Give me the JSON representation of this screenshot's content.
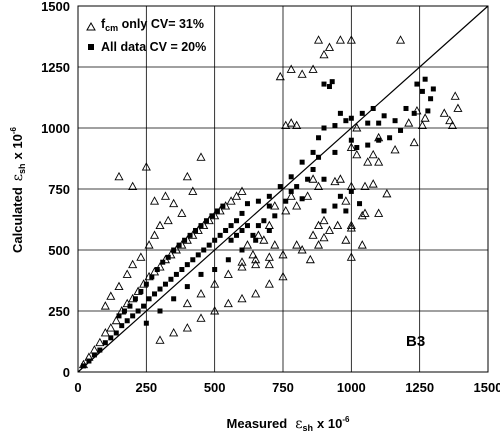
{
  "chart_data": {
    "type": "scatter",
    "title": "",
    "xlabel_prefix": "Measured",
    "ylabel_prefix": "Calculated",
    "axis_symbol": "ε",
    "axis_subscript": "sh",
    "axis_multiplier": "x 10",
    "axis_exponent": "-6",
    "xlim": [
      0,
      1500
    ],
    "ylim": [
      0,
      1500
    ],
    "x_ticks": [
      "0",
      "250",
      "500",
      "750",
      "1000",
      "1250",
      "1500"
    ],
    "y_ticks": [
      "0",
      "250",
      "500",
      "750",
      "1000",
      "1250",
      "1500"
    ],
    "grid": true,
    "reference_line": "y = x",
    "panel_label": "B3",
    "legend_position": "top-left",
    "legend": [
      {
        "marker": "triangle-open",
        "prefix": "f",
        "subscript": "cm",
        "suffix": " only CV= 31%"
      },
      {
        "marker": "square-filled",
        "prefix": "All data CV = 20%",
        "subscript": "",
        "suffix": ""
      }
    ],
    "series": [
      {
        "marker": "triangle-open",
        "points": [
          [
            20,
            30
          ],
          [
            40,
            60
          ],
          [
            60,
            90
          ],
          [
            80,
            120
          ],
          [
            100,
            160
          ],
          [
            120,
            180
          ],
          [
            140,
            210
          ],
          [
            160,
            250
          ],
          [
            180,
            280
          ],
          [
            200,
            300
          ],
          [
            220,
            330
          ],
          [
            240,
            360
          ],
          [
            260,
            390
          ],
          [
            280,
            410
          ],
          [
            300,
            430
          ],
          [
            320,
            460
          ],
          [
            340,
            480
          ],
          [
            360,
            500
          ],
          [
            380,
            520
          ],
          [
            400,
            540
          ],
          [
            420,
            560
          ],
          [
            440,
            580
          ],
          [
            460,
            600
          ],
          [
            480,
            620
          ],
          [
            500,
            640
          ],
          [
            520,
            660
          ],
          [
            540,
            680
          ],
          [
            560,
            700
          ],
          [
            580,
            720
          ],
          [
            600,
            740
          ],
          [
            100,
            270
          ],
          [
            120,
            310
          ],
          [
            150,
            350
          ],
          [
            180,
            400
          ],
          [
            200,
            440
          ],
          [
            230,
            470
          ],
          [
            260,
            520
          ],
          [
            280,
            560
          ],
          [
            300,
            600
          ],
          [
            330,
            620
          ],
          [
            150,
            800
          ],
          [
            200,
            760
          ],
          [
            250,
            840
          ],
          [
            280,
            700
          ],
          [
            320,
            720
          ],
          [
            350,
            690
          ],
          [
            400,
            800
          ],
          [
            420,
            740
          ],
          [
            380,
            650
          ],
          [
            450,
            880
          ],
          [
            300,
            130
          ],
          [
            350,
            160
          ],
          [
            400,
            180
          ],
          [
            450,
            220
          ],
          [
            500,
            250
          ],
          [
            550,
            280
          ],
          [
            600,
            300
          ],
          [
            650,
            320
          ],
          [
            700,
            360
          ],
          [
            750,
            390
          ],
          [
            400,
            280
          ],
          [
            450,
            320
          ],
          [
            500,
            360
          ],
          [
            550,
            400
          ],
          [
            600,
            430
          ],
          [
            650,
            460
          ],
          [
            700,
            470
          ],
          [
            750,
            480
          ],
          [
            650,
            440
          ],
          [
            700,
            440
          ],
          [
            760,
            1010
          ],
          [
            780,
            1020
          ],
          [
            800,
            1010
          ],
          [
            740,
            1210
          ],
          [
            780,
            1240
          ],
          [
            820,
            1220
          ],
          [
            860,
            1240
          ],
          [
            900,
            1300
          ],
          [
            920,
            1330
          ],
          [
            960,
            1360
          ],
          [
            880,
            1360
          ],
          [
            1000,
            1360
          ],
          [
            1180,
            1360
          ],
          [
            1020,
            1000
          ],
          [
            1020,
            890
          ],
          [
            1060,
            860
          ],
          [
            1100,
            860
          ],
          [
            1080,
            770
          ],
          [
            1050,
            760
          ],
          [
            1000,
            760
          ],
          [
            980,
            700
          ],
          [
            1050,
            650
          ],
          [
            1100,
            650
          ],
          [
            1130,
            730
          ],
          [
            960,
            790
          ],
          [
            940,
            780
          ],
          [
            1210,
            1020
          ],
          [
            1240,
            1070
          ],
          [
            1270,
            1040
          ],
          [
            1360,
            1030
          ],
          [
            1380,
            1130
          ],
          [
            1390,
            1080
          ],
          [
            1370,
            1010
          ],
          [
            1340,
            1060
          ],
          [
            1260,
            1010
          ],
          [
            1230,
            940
          ],
          [
            1160,
            910
          ],
          [
            1100,
            960
          ],
          [
            1080,
            890
          ],
          [
            1000,
            920
          ],
          [
            860,
            790
          ],
          [
            880,
            760
          ],
          [
            840,
            720
          ],
          [
            800,
            680
          ],
          [
            780,
            720
          ],
          [
            760,
            660
          ],
          [
            700,
            600
          ],
          [
            720,
            680
          ],
          [
            660,
            560
          ],
          [
            620,
            520
          ],
          [
            800,
            520
          ],
          [
            820,
            500
          ],
          [
            850,
            460
          ],
          [
            880,
            520
          ],
          [
            900,
            550
          ],
          [
            950,
            600
          ],
          [
            1000,
            600
          ],
          [
            1040,
            640
          ],
          [
            980,
            540
          ],
          [
            920,
            580
          ],
          [
            1040,
            520
          ],
          [
            1000,
            470
          ],
          [
            640,
            480
          ],
          [
            600,
            450
          ],
          [
            680,
            540
          ],
          [
            720,
            520
          ],
          [
            880,
            600
          ],
          [
            860,
            560
          ],
          [
            900,
            620
          ],
          [
            1000,
            590
          ]
        ]
      },
      {
        "marker": "square-filled",
        "points": [
          [
            20,
            25
          ],
          [
            40,
            45
          ],
          [
            60,
            70
          ],
          [
            80,
            90
          ],
          [
            100,
            120
          ],
          [
            120,
            140
          ],
          [
            140,
            160
          ],
          [
            160,
            190
          ],
          [
            180,
            210
          ],
          [
            200,
            230
          ],
          [
            220,
            250
          ],
          [
            240,
            270
          ],
          [
            260,
            300
          ],
          [
            280,
            320
          ],
          [
            300,
            340
          ],
          [
            320,
            360
          ],
          [
            340,
            380
          ],
          [
            360,
            400
          ],
          [
            380,
            420
          ],
          [
            400,
            440
          ],
          [
            420,
            460
          ],
          [
            440,
            480
          ],
          [
            460,
            500
          ],
          [
            480,
            520
          ],
          [
            500,
            540
          ],
          [
            520,
            560
          ],
          [
            540,
            580
          ],
          [
            560,
            600
          ],
          [
            580,
            620
          ],
          [
            600,
            650
          ],
          [
            150,
            230
          ],
          [
            170,
            250
          ],
          [
            190,
            270
          ],
          [
            210,
            300
          ],
          [
            230,
            330
          ],
          [
            250,
            360
          ],
          [
            270,
            390
          ],
          [
            290,
            420
          ],
          [
            310,
            450
          ],
          [
            330,
            470
          ],
          [
            350,
            500
          ],
          [
            370,
            520
          ],
          [
            390,
            540
          ],
          [
            410,
            560
          ],
          [
            430,
            580
          ],
          [
            450,
            600
          ],
          [
            470,
            620
          ],
          [
            490,
            640
          ],
          [
            510,
            660
          ],
          [
            530,
            680
          ],
          [
            250,
            200
          ],
          [
            300,
            250
          ],
          [
            350,
            300
          ],
          [
            400,
            350
          ],
          [
            450,
            400
          ],
          [
            500,
            420
          ],
          [
            550,
            460
          ],
          [
            600,
            500
          ],
          [
            650,
            540
          ],
          [
            700,
            580
          ],
          [
            620,
            690
          ],
          [
            660,
            700
          ],
          [
            700,
            720
          ],
          [
            740,
            760
          ],
          [
            780,
            800
          ],
          [
            820,
            860
          ],
          [
            860,
            900
          ],
          [
            880,
            960
          ],
          [
            900,
            1000
          ],
          [
            940,
            1010
          ],
          [
            960,
            1060
          ],
          [
            980,
            1030
          ],
          [
            1000,
            1040
          ],
          [
            1040,
            1060
          ],
          [
            1060,
            1020
          ],
          [
            1080,
            1080
          ],
          [
            1100,
            1020
          ],
          [
            1120,
            1050
          ],
          [
            1160,
            1030
          ],
          [
            1200,
            1080
          ],
          [
            900,
            1180
          ],
          [
            930,
            1190
          ],
          [
            920,
            1170
          ],
          [
            1240,
            1180
          ],
          [
            1270,
            1200
          ],
          [
            1260,
            1150
          ],
          [
            1300,
            1160
          ],
          [
            1280,
            1070
          ],
          [
            1290,
            1120
          ],
          [
            1230,
            1060
          ],
          [
            1100,
            950
          ],
          [
            1140,
            960
          ],
          [
            1180,
            990
          ],
          [
            1060,
            930
          ],
          [
            1020,
            920
          ],
          [
            1000,
            950
          ],
          [
            940,
            900
          ],
          [
            880,
            880
          ],
          [
            860,
            830
          ],
          [
            840,
            790
          ],
          [
            800,
            760
          ],
          [
            780,
            740
          ],
          [
            820,
            710
          ],
          [
            900,
            790
          ],
          [
            960,
            720
          ],
          [
            1000,
            740
          ],
          [
            1030,
            690
          ],
          [
            980,
            660
          ],
          [
            940,
            680
          ],
          [
            900,
            660
          ],
          [
            720,
            640
          ],
          [
            700,
            680
          ],
          [
            760,
            700
          ],
          [
            680,
            620
          ],
          [
            640,
            560
          ],
          [
            620,
            600
          ],
          [
            560,
            540
          ],
          [
            580,
            560
          ],
          [
            660,
            600
          ],
          [
            600,
            580
          ]
        ]
      }
    ]
  }
}
